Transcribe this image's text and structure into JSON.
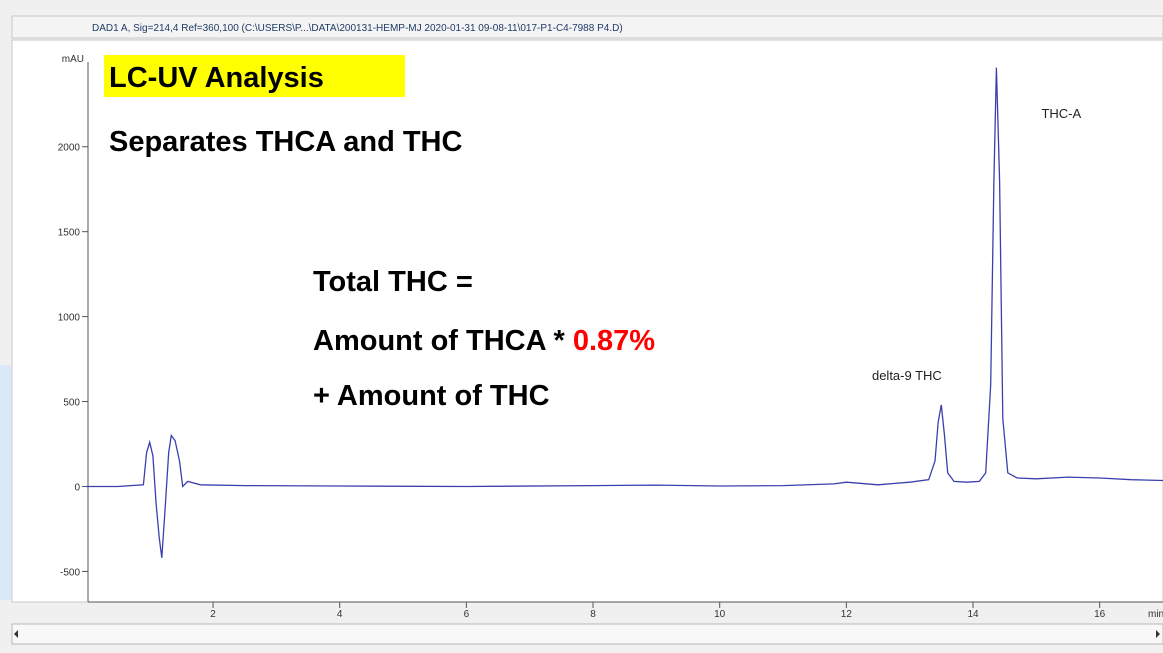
{
  "header": "DAD1 A, Sig=214,4 Ref=360,100 (C:\\USERS\\P...\\DATA\\200131-HEMP-MJ 2020-01-31 09-08-11\\017-P1-C4-7988 P4.D)",
  "annotations": {
    "title": "LC-UV Analysis",
    "subtitle": "Separates THCA and THC",
    "formula_line1": "Total THC =",
    "formula_line2": "Amount of THCA *",
    "factor": "0.87%",
    "formula_line3": "+ Amount of THC"
  },
  "chart_data": {
    "type": "line",
    "ylabel": "mAU",
    "xlabel": "min",
    "x": [
      0,
      0.5,
      0.9,
      0.95,
      1.0,
      1.05,
      1.1,
      1.15,
      1.19,
      1.24,
      1.3,
      1.34,
      1.4,
      1.47,
      1.52,
      1.6,
      1.8,
      2.5,
      4,
      6,
      8,
      9,
      10,
      11,
      11.8,
      12,
      12.5,
      13,
      13.3,
      13.4,
      13.45,
      13.5,
      13.55,
      13.6,
      13.7,
      13.9,
      14.1,
      14.2,
      14.28,
      14.33,
      14.37,
      14.42,
      14.47,
      14.55,
      14.7,
      15,
      15.5,
      16,
      16.5,
      17
    ],
    "series": [
      {
        "name": "DAD1 A",
        "color": "#3a3fae",
        "values": [
          0,
          0,
          10,
          200,
          260,
          180,
          -100,
          -300,
          -420,
          -150,
          200,
          300,
          270,
          150,
          0,
          30,
          10,
          5,
          3,
          0,
          5,
          8,
          3,
          5,
          15,
          25,
          10,
          25,
          40,
          150,
          380,
          480,
          300,
          80,
          30,
          25,
          30,
          80,
          600,
          1800,
          2465,
          1800,
          400,
          80,
          50,
          45,
          55,
          50,
          40,
          35
        ]
      }
    ],
    "peaks": [
      {
        "label": "delta-9 THC",
        "x": 13.51
      },
      {
        "label": "THC-A",
        "x": 14.37
      }
    ],
    "xlim": [
      0,
      17
    ],
    "ylim": [
      -680,
      2540
    ],
    "xticks": [
      2,
      4,
      6,
      8,
      10,
      12,
      14,
      16
    ],
    "yticks": [
      -500,
      0,
      500,
      1000,
      1500,
      2000
    ]
  }
}
